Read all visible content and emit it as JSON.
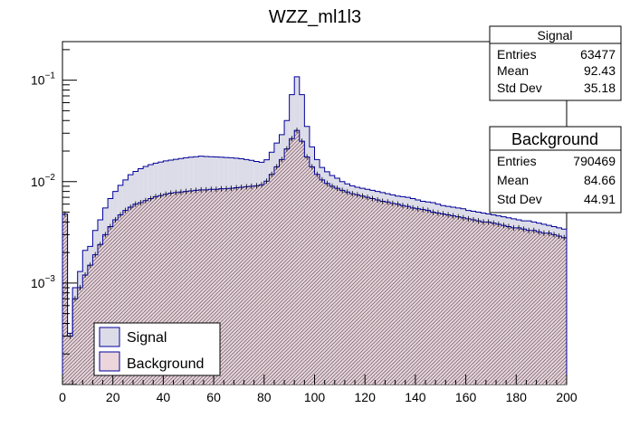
{
  "chart_data": {
    "type": "histogram",
    "title": "WZZ_ml1l3",
    "xlabel": "",
    "ylabel": "",
    "x_range": [
      0,
      200
    ],
    "bin_width": 2,
    "y_scale": "log",
    "y_range": [
      0.0001,
      0.24
    ],
    "x_ticks": [
      0,
      20,
      40,
      60,
      80,
      100,
      120,
      140,
      160,
      180,
      200
    ],
    "y_ticks": [
      {
        "value": 0.1,
        "base": "10",
        "exp": "−1"
      },
      {
        "value": 0.01,
        "base": "10",
        "exp": "−2"
      },
      {
        "value": 0.001,
        "base": "10",
        "exp": "−3"
      }
    ],
    "grid": false,
    "series": [
      {
        "name": "Signal",
        "line_color": "#000099",
        "fill_color": "#dcdce8",
        "values": [
          0.0048,
          0.00032,
          0.0009,
          0.0013,
          0.0021,
          0.0023,
          0.0033,
          0.0042,
          0.0055,
          0.0068,
          0.008,
          0.0092,
          0.0104,
          0.0117,
          0.0126,
          0.0134,
          0.0141,
          0.0147,
          0.0152,
          0.0156,
          0.016,
          0.0163,
          0.0166,
          0.0169,
          0.0172,
          0.0174,
          0.0176,
          0.0178,
          0.0177,
          0.0176,
          0.0175,
          0.0174,
          0.0173,
          0.0172,
          0.017,
          0.0168,
          0.0165,
          0.0162,
          0.0158,
          0.0155,
          0.0164,
          0.0195,
          0.024,
          0.029,
          0.04,
          0.072,
          0.108,
          0.072,
          0.035,
          0.022,
          0.0165,
          0.0138,
          0.0125,
          0.0115,
          0.0108,
          0.01,
          0.0095,
          0.0091,
          0.0088,
          0.0086,
          0.0084,
          0.0082,
          0.008,
          0.0078,
          0.0076,
          0.0074,
          0.0072,
          0.0071,
          0.007,
          0.0068,
          0.0066,
          0.0064,
          0.0063,
          0.0062,
          0.006,
          0.0058,
          0.0057,
          0.0056,
          0.0055,
          0.0054,
          0.0052,
          0.0051,
          0.005,
          0.0049,
          0.0048,
          0.0047,
          0.0046,
          0.0045,
          0.0044,
          0.0043,
          0.0042,
          0.0041,
          0.0041,
          0.004,
          0.0039,
          0.0038,
          0.0037,
          0.0036,
          0.0035,
          0.0034
        ]
      },
      {
        "name": "Background",
        "line_color": "#000099",
        "fill_color": "#ecd6dc",
        "values": [
          0.0048,
          0.0003,
          0.0007,
          0.0009,
          0.0012,
          0.0015,
          0.0019,
          0.0024,
          0.003,
          0.0036,
          0.0042,
          0.0047,
          0.0052,
          0.0056,
          0.006,
          0.0062,
          0.0065,
          0.0068,
          0.0071,
          0.0073,
          0.0075,
          0.0077,
          0.0078,
          0.0079,
          0.008,
          0.0081,
          0.0082,
          0.0083,
          0.0083,
          0.0084,
          0.0084,
          0.0085,
          0.0085,
          0.0086,
          0.0087,
          0.0088,
          0.0089,
          0.009,
          0.0091,
          0.0093,
          0.0101,
          0.0118,
          0.014,
          0.0165,
          0.021,
          0.0265,
          0.032,
          0.025,
          0.0175,
          0.014,
          0.0118,
          0.0104,
          0.0096,
          0.009,
          0.0086,
          0.0082,
          0.0079,
          0.0076,
          0.0074,
          0.0072,
          0.007,
          0.0068,
          0.0066,
          0.0064,
          0.0063,
          0.0061,
          0.006,
          0.0058,
          0.0057,
          0.0055,
          0.0054,
          0.0053,
          0.0052,
          0.005,
          0.0049,
          0.0048,
          0.0047,
          0.0046,
          0.0045,
          0.0044,
          0.0043,
          0.0042,
          0.0041,
          0.004,
          0.004,
          0.0039,
          0.0038,
          0.0037,
          0.0036,
          0.0035,
          0.0035,
          0.0034,
          0.0033,
          0.0033,
          0.0032,
          0.0031,
          0.0031,
          0.003,
          0.0029,
          0.0028
        ]
      }
    ],
    "stats": [
      {
        "name": "Signal",
        "rows": [
          {
            "label": "Entries",
            "value": "63477"
          },
          {
            "label": "Mean",
            "value": "92.43"
          },
          {
            "label": "Std Dev",
            "value": "35.18"
          }
        ]
      },
      {
        "name": "Background",
        "rows": [
          {
            "label": "Entries",
            "value": "790469"
          },
          {
            "label": "Mean",
            "value": "84.66"
          },
          {
            "label": "Std Dev",
            "value": "44.91"
          }
        ]
      }
    ],
    "legend": {
      "position": "bottom-left",
      "entries": [
        {
          "label": "Signal",
          "fill_color": "#dcdce8",
          "line_color": "#000099"
        },
        {
          "label": "Background",
          "fill_color": "#ecd6dc",
          "line_color": "#000099"
        }
      ]
    }
  }
}
